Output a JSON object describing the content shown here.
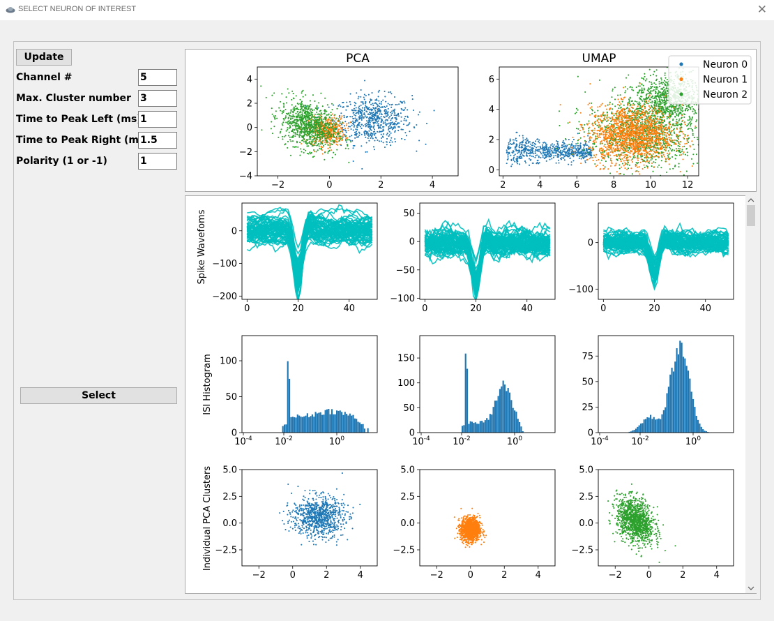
{
  "window": {
    "title": "SELECT NEURON OF INTEREST"
  },
  "controls": {
    "update_label": "Update",
    "select_label": "Select",
    "fields": [
      {
        "label": "Channel #",
        "value": "5"
      },
      {
        "label": "Max. Cluster number",
        "value": "3"
      },
      {
        "label": "Time to Peak Left (ms)",
        "value": "1"
      },
      {
        "label": "Time to Peak Right (ms)",
        "value": "1.5"
      },
      {
        "label": "Polarity (1 or -1)",
        "value": "1"
      }
    ]
  },
  "colors": {
    "neuron0": "#1f77b4",
    "neuron1": "#ff7f0e",
    "neuron2": "#2ca02c",
    "waveform": "#00bfbf",
    "hist": "#1f77b4"
  },
  "chart_data": [
    {
      "type": "scatter",
      "title": "PCA",
      "xlim": [
        -2.8,
        5.0
      ],
      "ylim": [
        -4,
        5
      ],
      "x_ticks": [
        -2,
        0,
        2,
        4
      ],
      "y_ticks": [
        -4,
        -2,
        0,
        2,
        4
      ],
      "series": [
        {
          "name": "Neuron 0",
          "center": [
            1.7,
            0.6
          ],
          "spread": [
            0.75,
            1.0
          ]
        },
        {
          "name": "Neuron 1",
          "center": [
            -0.1,
            -0.3
          ],
          "spread": [
            0.35,
            0.6
          ]
        },
        {
          "name": "Neuron 2",
          "center": [
            -0.8,
            0.2
          ],
          "spread": [
            0.55,
            1.0
          ]
        }
      ]
    },
    {
      "type": "scatter",
      "title": "UMAP",
      "xlim": [
        1.8,
        12.6
      ],
      "ylim": [
        -0.4,
        6.8
      ],
      "x_ticks": [
        2,
        4,
        6,
        8,
        10,
        12
      ],
      "y_ticks": [
        0,
        2,
        4,
        6
      ],
      "legend_position": "top-right",
      "legend": [
        "Neuron 0",
        "Neuron 1",
        "Neuron 2"
      ]
    },
    {
      "type": "line",
      "ylabel": "Spike Wavefoms",
      "panels": [
        {
          "neuron": 0,
          "xlim": [
            -2,
            51
          ],
          "ylim": [
            -210,
            85
          ],
          "x_ticks": [
            0,
            20,
            40
          ],
          "y_ticks": [
            -200,
            -100,
            0
          ],
          "trough": -180
        },
        {
          "neuron": 1,
          "xlim": [
            -2,
            51
          ],
          "ylim": [
            -102,
            68
          ],
          "x_ticks": [
            0,
            20,
            40
          ],
          "y_ticks": [
            -100,
            -50,
            0,
            50
          ],
          "trough": -90
        },
        {
          "neuron": 2,
          "xlim": [
            -2,
            51
          ],
          "ylim": [
            -122,
            85
          ],
          "x_ticks": [
            0,
            20,
            40
          ],
          "y_ticks": [
            -100,
            0
          ],
          "trough": -80
        }
      ]
    },
    {
      "type": "bar",
      "ylabel": "ISI Histogram",
      "xscale": "log",
      "panels": [
        {
          "neuron": 0,
          "ylim": [
            0,
            135
          ],
          "y_ticks": [
            0,
            50,
            100
          ],
          "x_ticks": [
            "10^-4",
            "10^-2",
            "10^0"
          ],
          "peak": 130
        },
        {
          "neuron": 1,
          "ylim": [
            0,
            195
          ],
          "y_ticks": [
            0,
            50,
            100,
            150
          ],
          "x_ticks": [
            "10^-4",
            "10^-2",
            "10^0"
          ],
          "peak": 185
        },
        {
          "neuron": 2,
          "ylim": [
            0,
            95
          ],
          "y_ticks": [
            0,
            25,
            50,
            75
          ],
          "x_ticks": [
            "10^-4",
            "10^-2",
            "10^0"
          ],
          "peak": 90
        }
      ]
    },
    {
      "type": "scatter",
      "ylabel": "Individual PCA Clusters",
      "panels": [
        {
          "neuron": 0,
          "xlim": [
            -3,
            5
          ],
          "ylim": [
            -4,
            5
          ],
          "x_ticks": [
            -2,
            0,
            2,
            4
          ],
          "y_ticks": [
            -2.5,
            0.0,
            2.5,
            5.0
          ]
        },
        {
          "neuron": 1,
          "xlim": [
            -3,
            5
          ],
          "ylim": [
            -4,
            5
          ],
          "x_ticks": [
            -2,
            0,
            2,
            4
          ],
          "y_ticks": [
            -2.5,
            0.0,
            2.5,
            5.0
          ]
        },
        {
          "neuron": 2,
          "xlim": [
            -3,
            5
          ],
          "ylim": [
            -4,
            5
          ],
          "x_ticks": [
            -2,
            0,
            2,
            4
          ],
          "y_ticks": [
            -2.5,
            0.0,
            2.5,
            5.0
          ]
        }
      ]
    }
  ]
}
